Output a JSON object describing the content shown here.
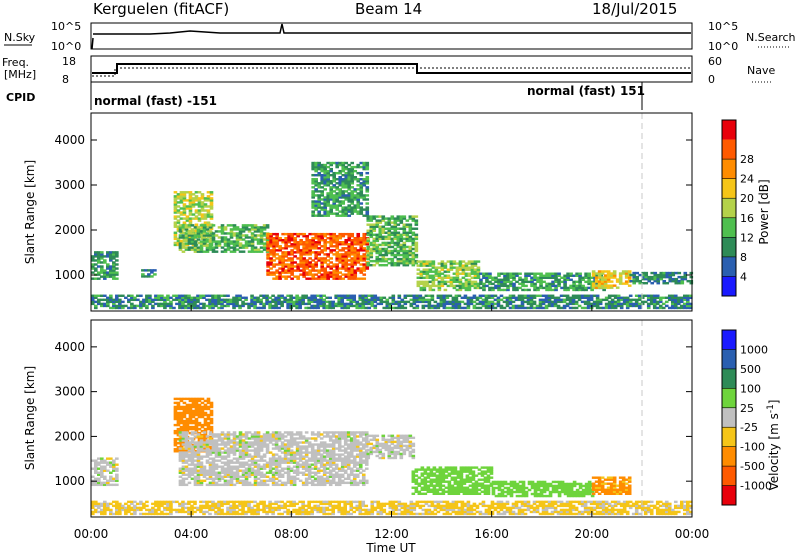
{
  "header": {
    "station": "Kerguelen (fitACF)",
    "beam": "Beam 14",
    "date": "18/Jul/2015"
  },
  "panels": {
    "nsky": {
      "label": "N.Sky",
      "tick_top": "10^5",
      "tick_bottom": "10^0"
    },
    "nsearch": {
      "label": "N.Search",
      "tick_top": "10^5",
      "tick_bottom": "10^0"
    },
    "freq": {
      "label_line1": "Freq.",
      "label_line2": "[MHz]",
      "tick_top": "18",
      "tick_bottom": "8"
    },
    "nave": {
      "label": "Nave",
      "tick_top": "60",
      "tick_bottom": "0"
    },
    "cpid": {
      "label": "CPID",
      "mode_1": "normal (fast) -151",
      "mode_2": "normal (fast) 151"
    }
  },
  "colors": {
    "power_scale": [
      "#1a1aff",
      "#2a5fb0",
      "#2e8b57",
      "#4fbf4f",
      "#b4d24a",
      "#f5c518",
      "#ff8c00",
      "#ff5a00",
      "#e8000b"
    ],
    "velocity_scale": [
      "#e8000b",
      "#ff5a00",
      "#ff8c00",
      "#f5c518",
      "#c0c0c0",
      "#6ed43c",
      "#2e8b57",
      "#2a5fb0",
      "#1a1aff"
    ]
  },
  "chart_data": [
    {
      "type": "heatmap",
      "name": "power",
      "ylabel": "Slant Range [km]",
      "colorbar_label": "Power [dB]",
      "colorbar_ticks": [
        "4",
        "8",
        "12",
        "16",
        "20",
        "24",
        "28"
      ],
      "ylim": [
        200,
        4600
      ],
      "yticks": [
        "1000",
        "2000",
        "3000",
        "4000"
      ],
      "xlim": [
        0,
        24
      ],
      "regions": [
        {
          "t": [
            0.0,
            1.0
          ],
          "r": [
            900,
            1500
          ],
          "value": 10
        },
        {
          "t": [
            2.0,
            2.6
          ],
          "r": [
            950,
            1120
          ],
          "value": 8
        },
        {
          "t": [
            3.3,
            4.8
          ],
          "r": [
            1650,
            2850
          ],
          "value": 16
        },
        {
          "t": [
            3.5,
            7.0
          ],
          "r": [
            1500,
            2100
          ],
          "value": 12
        },
        {
          "t": [
            7.0,
            11.0
          ],
          "r": [
            900,
            1900
          ],
          "value": 26
        },
        {
          "t": [
            8.8,
            11.0
          ],
          "r": [
            2300,
            3500
          ],
          "value": 10
        },
        {
          "t": [
            11.0,
            13.0
          ],
          "r": [
            1200,
            2300
          ],
          "value": 12
        },
        {
          "t": [
            13.0,
            15.5
          ],
          "r": [
            650,
            1300
          ],
          "value": 14
        },
        {
          "t": [
            15.5,
            20.5
          ],
          "r": [
            650,
            1050
          ],
          "value": 10
        },
        {
          "t": [
            20.0,
            21.5
          ],
          "r": [
            700,
            1100
          ],
          "value": 18
        },
        {
          "t": [
            21.5,
            24.0
          ],
          "r": [
            800,
            1050
          ],
          "value": 8
        },
        {
          "t": [
            0.0,
            24.0
          ],
          "r": [
            250,
            550
          ],
          "value": 8
        }
      ]
    },
    {
      "type": "heatmap",
      "name": "velocity",
      "ylabel": "Slant Range [km]",
      "xlabel": "Time UT",
      "colorbar_label": "Velocity [m s^-1]",
      "colorbar_ticks": [
        "-1000",
        "-500",
        "-100",
        "-25",
        "25",
        "100",
        "500",
        "1000"
      ],
      "ylim": [
        200,
        4600
      ],
      "yticks": [
        "1000",
        "2000",
        "3000",
        "4000"
      ],
      "xlim": [
        0,
        24
      ],
      "xticks": [
        "00:00",
        "04:00",
        "08:00",
        "12:00",
        "16:00",
        "20:00",
        "00:00"
      ],
      "regions": [
        {
          "t": [
            0.0,
            1.0
          ],
          "r": [
            900,
            1500
          ],
          "value": 0
        },
        {
          "t": [
            3.3,
            4.8
          ],
          "r": [
            1650,
            2850
          ],
          "value": -300
        },
        {
          "t": [
            3.5,
            11.0
          ],
          "r": [
            900,
            2100
          ],
          "value": 0
        },
        {
          "t": [
            11.0,
            12.8
          ],
          "r": [
            1500,
            2000
          ],
          "value": 0
        },
        {
          "t": [
            12.8,
            16.0
          ],
          "r": [
            700,
            1300
          ],
          "value": 60
        },
        {
          "t": [
            16.0,
            20.0
          ],
          "r": [
            650,
            1000
          ],
          "value": 60
        },
        {
          "t": [
            20.0,
            21.5
          ],
          "r": [
            700,
            1100
          ],
          "value": -120
        },
        {
          "t": [
            0.0,
            24.0
          ],
          "r": [
            250,
            550
          ],
          "value": -40
        }
      ]
    }
  ]
}
